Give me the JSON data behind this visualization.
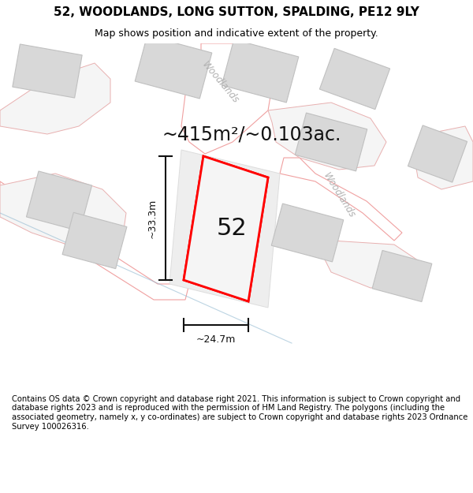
{
  "title": "52, WOODLANDS, LONG SUTTON, SPALDING, PE12 9LY",
  "subtitle": "Map shows position and indicative extent of the property.",
  "area_label": "~415m²/~0.103ac.",
  "number_label": "52",
  "width_label": "~24.7m",
  "height_label": "~33.3m",
  "road_label_1": "Woodlands",
  "road_label_2": "Woodlands",
  "footer": "Contains OS data © Crown copyright and database right 2021. This information is subject to Crown copyright and database rights 2023 and is reproduced with the permission of HM Land Registry. The polygons (including the associated geometry, namely x, y co-ordinates) are subject to Crown copyright and database rights 2023 Ordnance Survey 100026316.",
  "bg_color": "#ffffff",
  "map_bg": "#ffffff",
  "property_edge": "#ff0000",
  "building_fill": "#d8d8d8",
  "building_edge": "#c0c0c0",
  "road_outline": "#f0a0a0",
  "road_fill": "#ffffff",
  "parcel_fill": "#f5f5f5",
  "parcel_edge": "#e8b0b0",
  "dim_color": "#111111",
  "road_text_color": "#b0b0b0",
  "title_fontsize": 11,
  "subtitle_fontsize": 9,
  "area_fontsize": 17,
  "footer_fontsize": 7.2,
  "number_fontsize": 22
}
